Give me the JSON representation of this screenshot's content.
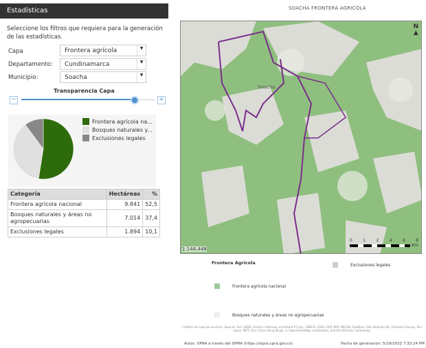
{
  "panel": {
    "title": "Estadísticas",
    "intro": "Seleccione los filtros que requiera para la generación de las estadísticas.",
    "capa_label": "Capa",
    "capa_value": "Frontera agrícola",
    "depto_label": "Departamento:",
    "depto_value": "Cundinamarca",
    "muni_label": "Municipio:",
    "muni_value": "Soacha",
    "transparency_label": "Transparencia Capa",
    "transparency_value": 0.85,
    "minus": "−",
    "plus": "+"
  },
  "chart_data": {
    "type": "pie",
    "slices": [
      {
        "label": "Frontera agrícola nacional",
        "legend": "Frontera agrícola na...",
        "value": 52.5,
        "color": "#2e6b0b"
      },
      {
        "label": "Bosques naturales y áreas no agropecuarias",
        "legend": "Bosques naturales y...",
        "value": 37.4,
        "color": "#e0e0e0"
      },
      {
        "label": "Exclusiones legales",
        "legend": "Exclusiones legales",
        "value": 10.1,
        "color": "#888888"
      }
    ],
    "legend_position": "right"
  },
  "table": {
    "headers": [
      "Categoría",
      "Hectáreas",
      "%"
    ],
    "rows": [
      [
        "Frontera agrícola nacional",
        "9.841",
        "52,5"
      ],
      [
        "Bosques naturales y áreas no agropecuarias",
        "7.014",
        "37,4"
      ],
      [
        "Exclusiones legales",
        "1.894",
        "10,1"
      ]
    ]
  },
  "map": {
    "title": "SOACHA FRONTERA AGRICOLA",
    "scale": "1:144,448",
    "north": "N",
    "place": "Soacha",
    "scale_ticks": [
      "0",
      "1",
      "2",
      "4",
      "6",
      "8"
    ],
    "scale_unit": "Km",
    "legend_title": "Frontera Agrícola",
    "legend": [
      {
        "label": "Frontera agrícola nacional",
        "color": "#9cc79a"
      },
      {
        "label": "Bosques naturales y áreas no agropecuarias",
        "color": "#eeeeee"
      },
      {
        "label": "Exclusiones legales",
        "color": "#cccccc"
      }
    ],
    "credits": "Créditos de capa de servicios: Sources: Esri, HERE, Garmin, Intermap, increment P Corp., GEBCO, USGS, FAO, NPS, NRCAN, GeoBase, IGN, Kadaster NL, Ordnance Survey, Esri Japan, METI, Esri China (Hong Kong), (c) OpenStreetMap contributors, and the GIS User Community",
    "author": "Autor: UPRA a través del SIPRA (https://sipra.upra.gov.co)",
    "date": "Fecha de generación: 5/19/2022 7:33:24 PM"
  }
}
